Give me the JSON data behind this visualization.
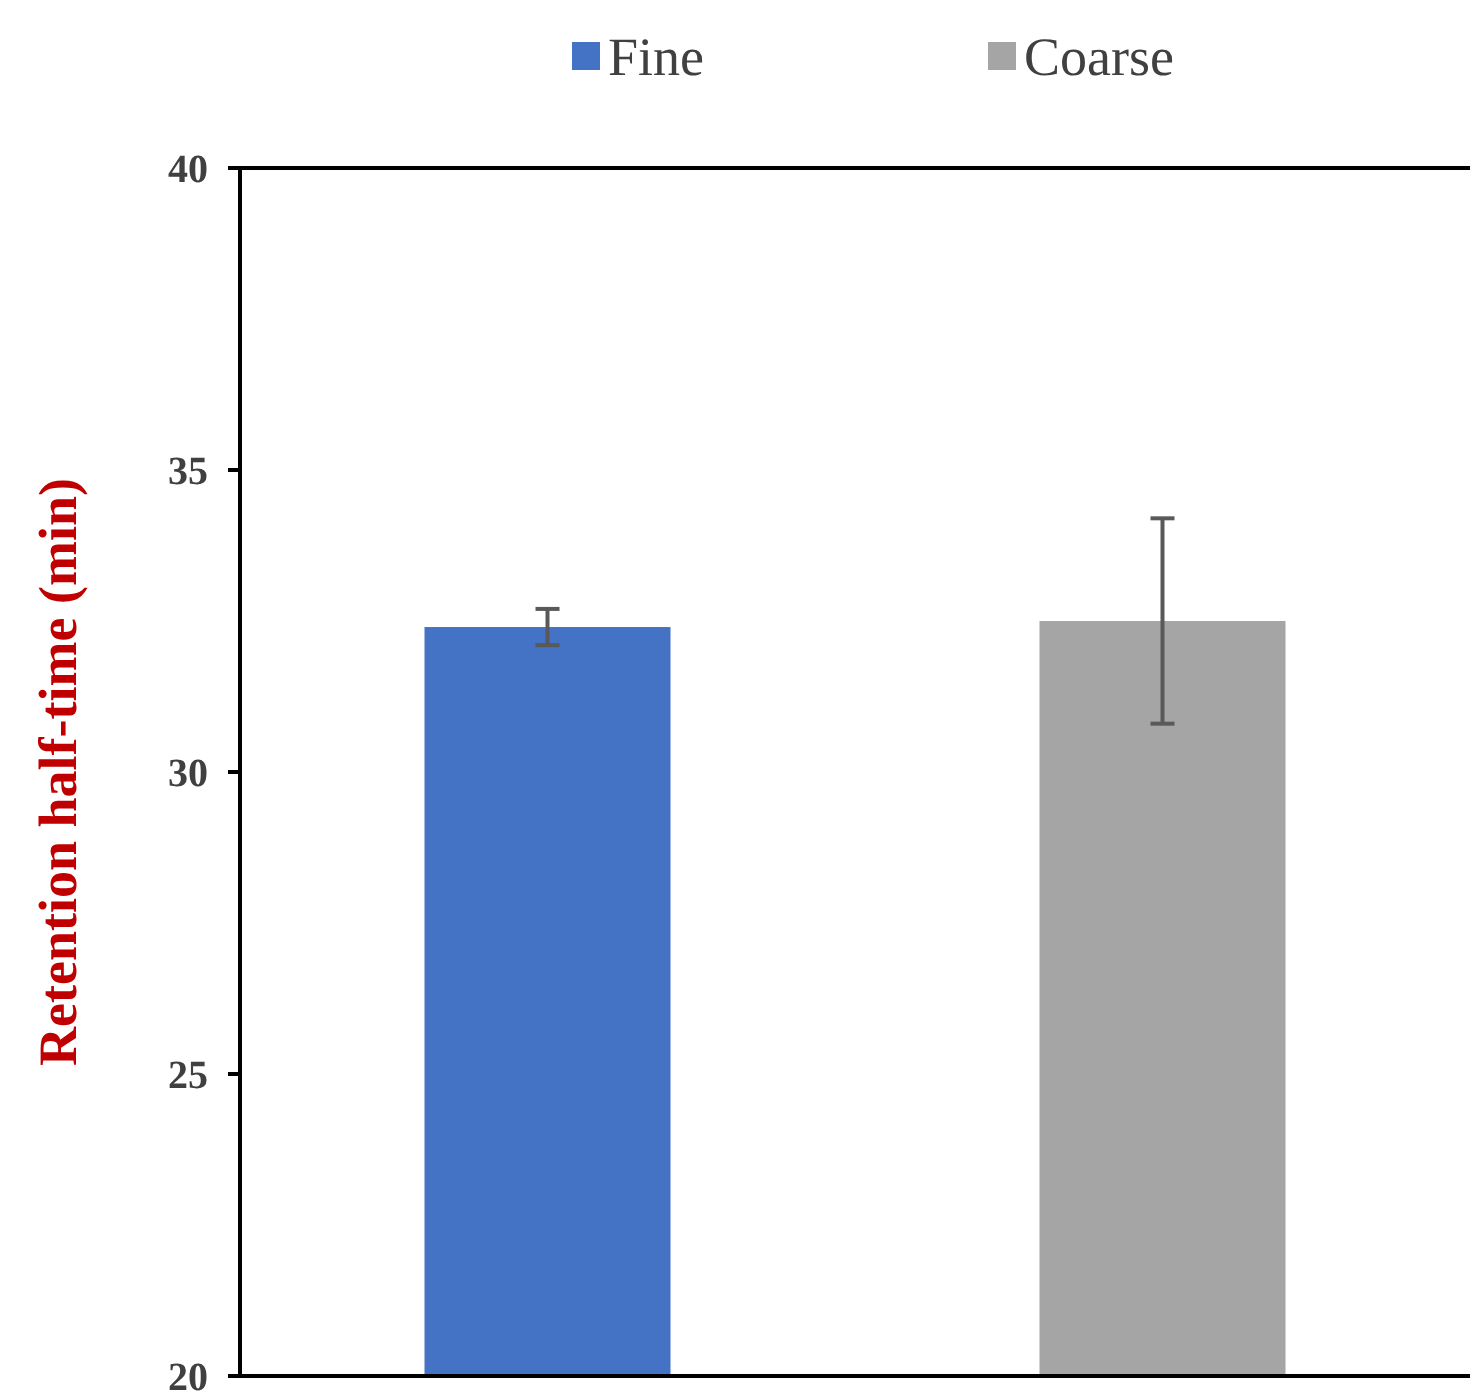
{
  "chart_data": {
    "type": "bar",
    "ylabel": "Retention half-time (min)",
    "categories": [
      null,
      null
    ],
    "series": [
      {
        "name": "Fine",
        "color": "#4472c4",
        "values": [
          32.4,
          null
        ],
        "errors": [
          0.3,
          null
        ]
      },
      {
        "name": "Coarse",
        "color": "#a5a5a5",
        "values": [
          null,
          32.5
        ],
        "errors": [
          null,
          1.7
        ]
      }
    ],
    "ylim": [
      20,
      40
    ],
    "yticks": [
      20,
      25,
      30,
      35,
      40
    ],
    "legend": "top",
    "grid": false
  }
}
